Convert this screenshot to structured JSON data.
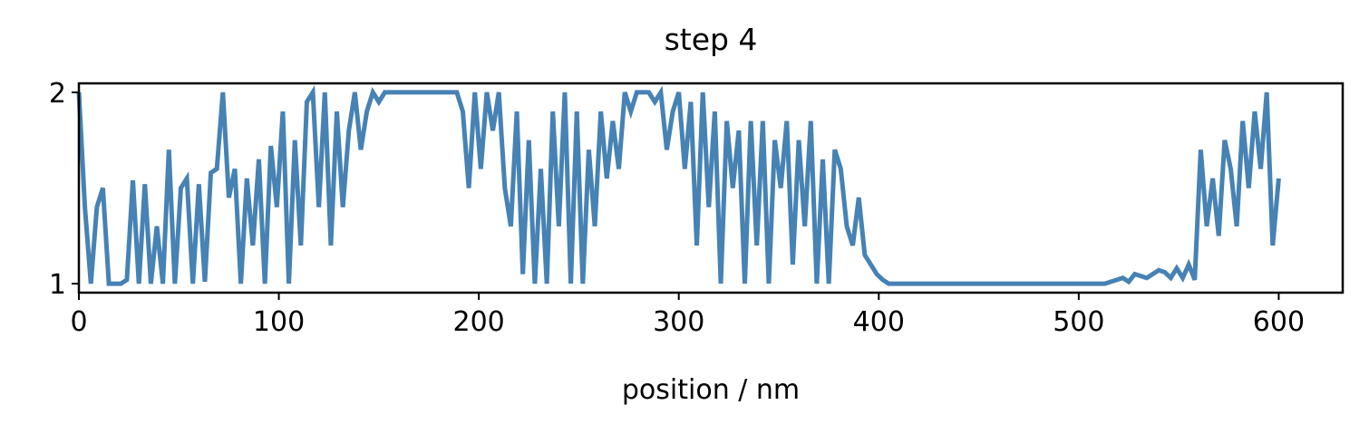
{
  "chart_data": {
    "type": "line",
    "title": "step 4",
    "x_label": "position / nm",
    "x": [
      0,
      3,
      6,
      9,
      12,
      15,
      18,
      21,
      24,
      27,
      30,
      33,
      36,
      39,
      42,
      45,
      48,
      51,
      54,
      57,
      60,
      63,
      66,
      69,
      72,
      75,
      78,
      81,
      84,
      87,
      90,
      93,
      96,
      99,
      102,
      105,
      108,
      111,
      114,
      117,
      120,
      123,
      126,
      129,
      132,
      135,
      138,
      141,
      144,
      147,
      150,
      153,
      156,
      159,
      162,
      165,
      168,
      171,
      174,
      177,
      180,
      183,
      186,
      189,
      192,
      195,
      198,
      201,
      204,
      207,
      210,
      213,
      216,
      219,
      222,
      225,
      228,
      231,
      234,
      237,
      240,
      243,
      246,
      249,
      252,
      255,
      258,
      261,
      264,
      267,
      270,
      273,
      276,
      279,
      282,
      285,
      288,
      291,
      294,
      297,
      300,
      303,
      306,
      309,
      312,
      315,
      318,
      321,
      324,
      327,
      330,
      333,
      336,
      339,
      342,
      345,
      348,
      351,
      354,
      357,
      360,
      363,
      366,
      369,
      372,
      375,
      378,
      381,
      384,
      387,
      390,
      393,
      396,
      399,
      402,
      405,
      408,
      411,
      414,
      417,
      420,
      423,
      426,
      429,
      432,
      435,
      438,
      441,
      444,
      447,
      450,
      453,
      456,
      459,
      462,
      465,
      468,
      471,
      474,
      477,
      480,
      483,
      486,
      489,
      492,
      495,
      498,
      501,
      504,
      507,
      510,
      513,
      516,
      519,
      522,
      525,
      528,
      531,
      534,
      537,
      540,
      543,
      546,
      549,
      552,
      555,
      558,
      561,
      564,
      567,
      570,
      573,
      576,
      579,
      582,
      585,
      588,
      591,
      594,
      597,
      600
    ],
    "series": [
      {
        "color": "#4682b4",
        "values": [
          2,
          1.4,
          1,
          1.4,
          1.5,
          1,
          1,
          1,
          1.02,
          1.54,
          1,
          1.52,
          1,
          1.3,
          1,
          1.7,
          1,
          1.5,
          1.55,
          1,
          1.52,
          1.01,
          1.58,
          1.6,
          2,
          1.45,
          1.6,
          1,
          1.55,
          1.2,
          1.65,
          1,
          1.72,
          1.4,
          1.9,
          1,
          1.75,
          1.2,
          1.95,
          2,
          1.4,
          2,
          1.2,
          1.9,
          1.4,
          1.8,
          2,
          1.7,
          1.9,
          2,
          1.95,
          2,
          2,
          2,
          2,
          2,
          2,
          2,
          2,
          2,
          2,
          2,
          2,
          2,
          1.9,
          1.5,
          2,
          1.6,
          2,
          1.8,
          2,
          1.5,
          1.3,
          1.9,
          1.05,
          1.75,
          1,
          1.6,
          1,
          1.9,
          1.3,
          2,
          1,
          1.9,
          1,
          1.7,
          1.3,
          1.9,
          1.55,
          1.85,
          1.6,
          2,
          1.9,
          2,
          2,
          2,
          1.95,
          2,
          1.7,
          1.9,
          2,
          1.6,
          1.95,
          1.2,
          2,
          1.4,
          1.9,
          1,
          1.85,
          1.5,
          1.8,
          1,
          1.85,
          1.2,
          1.85,
          1,
          1.75,
          1.5,
          1.85,
          1.1,
          1.75,
          1.3,
          1.85,
          1,
          1.65,
          1,
          1.7,
          1.6,
          1.3,
          1.2,
          1.45,
          1.15,
          1.1,
          1.05,
          1.02,
          1,
          1,
          1,
          1,
          1,
          1,
          1,
          1,
          1,
          1,
          1,
          1,
          1,
          1,
          1,
          1,
          1,
          1,
          1,
          1,
          1,
          1,
          1,
          1,
          1,
          1,
          1,
          1,
          1,
          1,
          1,
          1,
          1,
          1,
          1,
          1,
          1,
          1.01,
          1.02,
          1.03,
          1.01,
          1.05,
          1.04,
          1.03,
          1.05,
          1.07,
          1.06,
          1.03,
          1.08,
          1.03,
          1.1,
          1.02,
          1.7,
          1.3,
          1.55,
          1.25,
          1.75,
          1.6,
          1.3,
          1.85,
          1.5,
          1.9,
          1.6,
          2,
          1.2,
          1.55
        ]
      }
    ],
    "xlim": [
      0,
      632
    ],
    "ylim": [
      0.953,
      2.047
    ],
    "xticks": [
      0,
      100,
      200,
      300,
      400,
      500,
      600
    ],
    "yticks": [
      1,
      2
    ]
  }
}
